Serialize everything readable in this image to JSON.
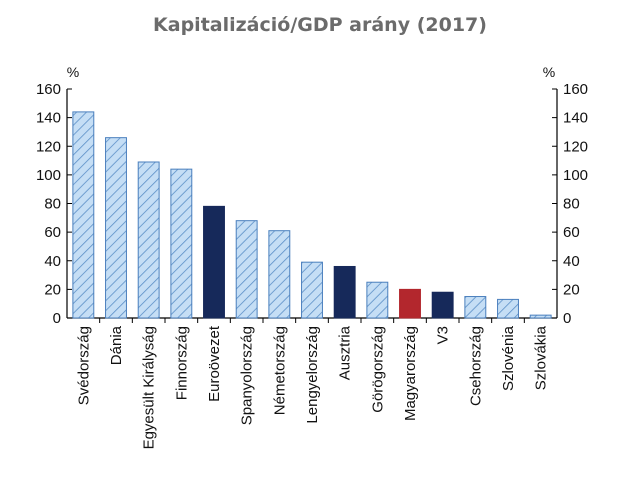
{
  "chart_data": {
    "type": "bar",
    "title": "Kapitalizáció/GDP arány (2017)",
    "ylabel_left": "%",
    "ylabel_right": "%",
    "ylim": [
      0,
      160
    ],
    "yticks": [
      0,
      20,
      40,
      60,
      80,
      100,
      120,
      140,
      160
    ],
    "categories": [
      "Svédország",
      "Dánia",
      "Egyesült Királyság",
      "Finnország",
      "Euroövezet",
      "Spanyolország",
      "Németország",
      "Lengyelország",
      "Ausztria",
      "Görögország",
      "Magyarország",
      "V3",
      "Csehország",
      "Szlovénia",
      "Szlovákia"
    ],
    "values": [
      144,
      126,
      109,
      104,
      78,
      68,
      61,
      39,
      36,
      25,
      20,
      18,
      15,
      13,
      2
    ],
    "bar_styles": [
      "hatched",
      "hatched",
      "hatched",
      "hatched",
      "solid-navy",
      "hatched",
      "hatched",
      "hatched",
      "solid-navy",
      "hatched",
      "solid-red",
      "solid-navy",
      "hatched",
      "hatched",
      "hatched"
    ],
    "grid": false,
    "legend": "none",
    "colors": {
      "hatch_fill": "#c5def5",
      "hatch_line": "#5b8fc7",
      "hatch_border": "#4a7fbd",
      "navy": "#16295a",
      "red": "#b3272d",
      "axis": "#000000",
      "title": "#6b6b6b"
    }
  }
}
